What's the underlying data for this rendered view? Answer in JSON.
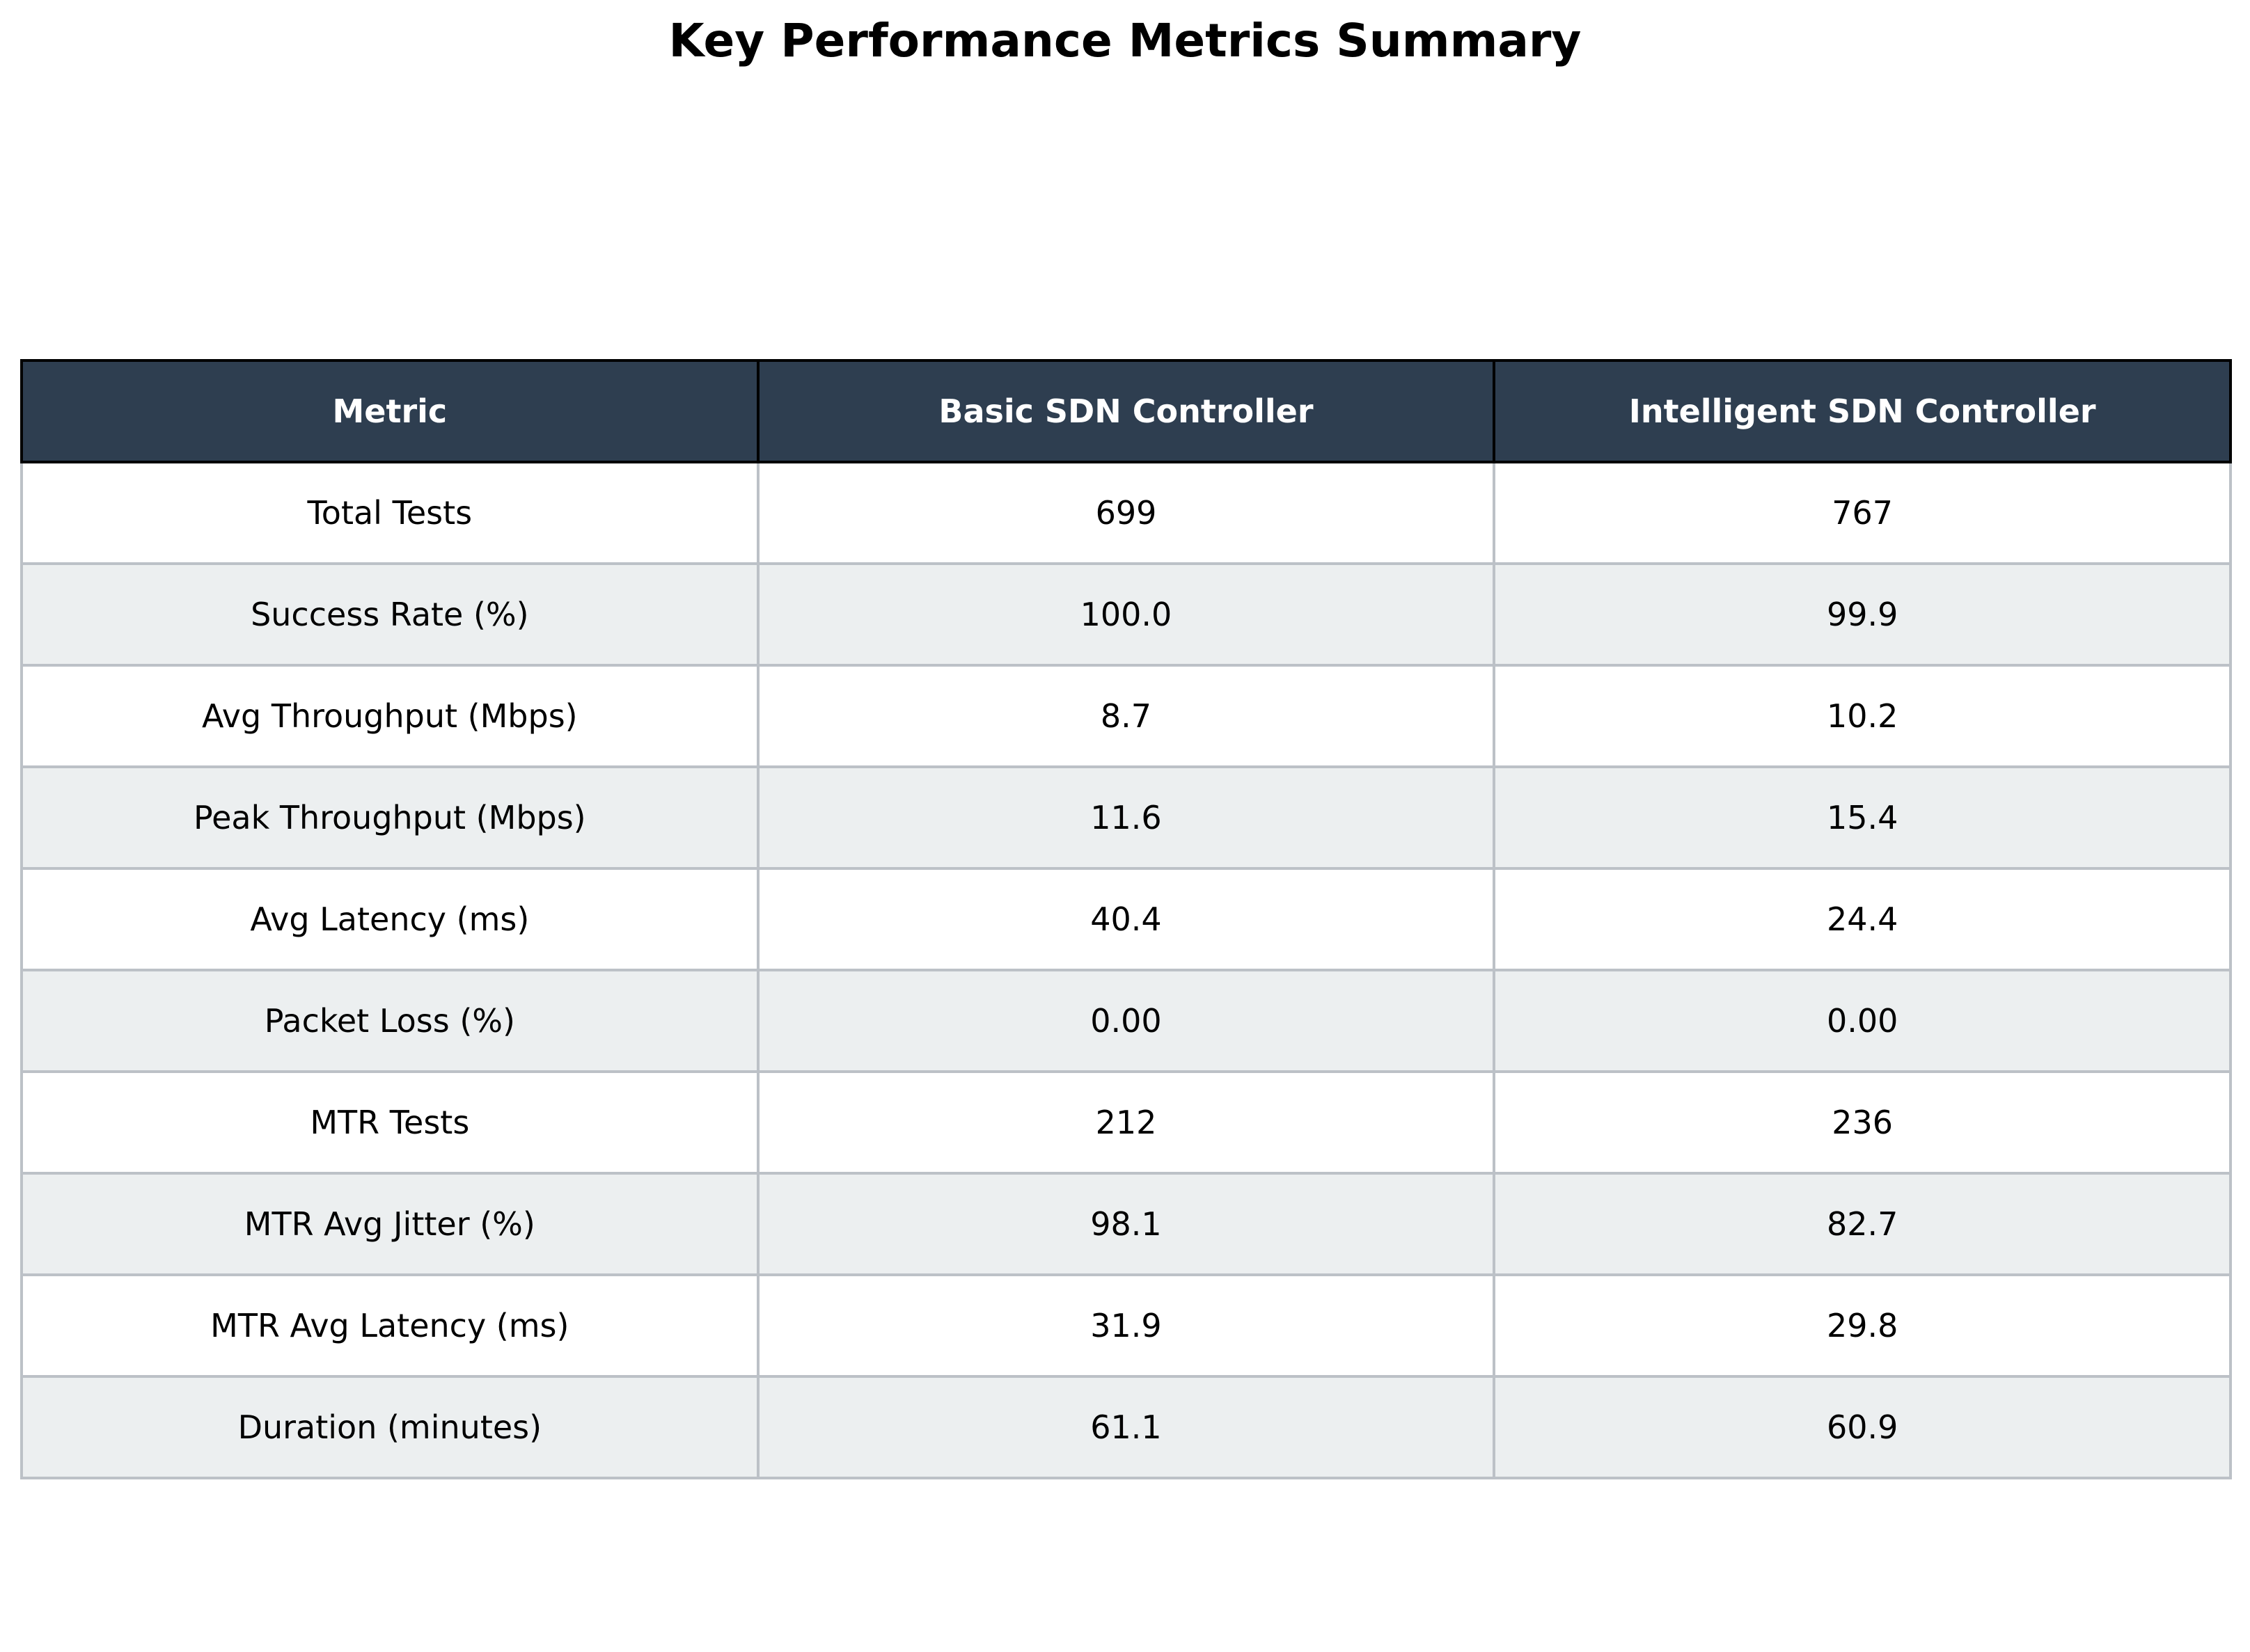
{
  "chart_data": {
    "type": "table",
    "title": "Key Performance Metrics Summary",
    "columns": [
      "Metric",
      "Basic SDN Controller",
      "Intelligent SDN Controller"
    ],
    "rows": [
      [
        "Total Tests",
        "699",
        "767"
      ],
      [
        "Success Rate (%)",
        "100.0",
        "99.9"
      ],
      [
        "Avg Throughput (Mbps)",
        "8.7",
        "10.2"
      ],
      [
        "Peak Throughput (Mbps)",
        "11.6",
        "15.4"
      ],
      [
        "Avg Latency (ms)",
        "40.4",
        "24.4"
      ],
      [
        "Packet Loss (%)",
        "0.00",
        "0.00"
      ],
      [
        "MTR Tests",
        "212",
        "236"
      ],
      [
        "MTR Avg Jitter (%)",
        "98.1",
        "82.7"
      ],
      [
        "MTR Avg Latency (ms)",
        "31.9",
        "29.8"
      ],
      [
        "Duration (minutes)",
        "61.1",
        "60.9"
      ]
    ],
    "colors": {
      "header_bg": "#2e3e50",
      "header_text": "#ffffff",
      "row_alt_bg": "#eceff0",
      "row_bg": "#ffffff",
      "grid": "#bcc1c7"
    }
  }
}
